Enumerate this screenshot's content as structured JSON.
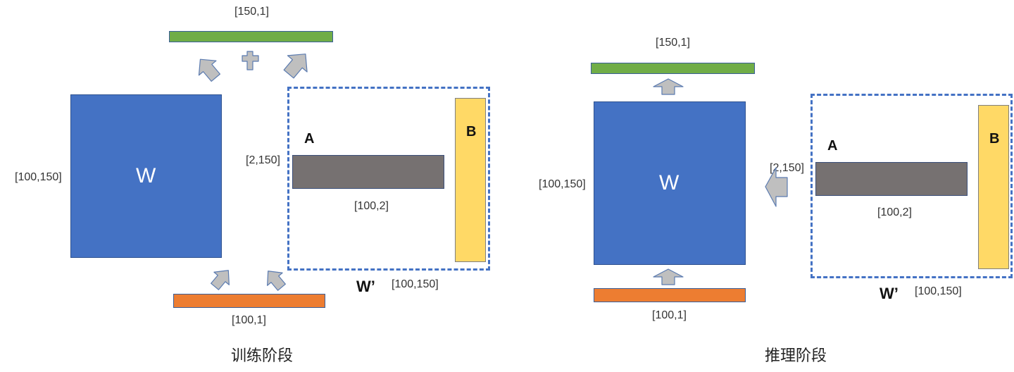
{
  "training": {
    "stage_label": "训练阶段",
    "output_dim": "[150,1]",
    "W_label": "W",
    "W_dim": "[100,150]",
    "A_label": "A",
    "A_in_dim": "[2,150]",
    "A_out_dim": "[100,2]",
    "B_label": "B",
    "Wprime_label": "W’",
    "Wprime_dim": "[100,150]",
    "input_dim": "[100,1]"
  },
  "inference": {
    "stage_label": "推理阶段",
    "output_dim": "[150,1]",
    "W_label": "W",
    "W_dim": "[100,150]",
    "A_label": "A",
    "A_in_dim": "[2,150]",
    "A_out_dim": "[100,2]",
    "B_label": "B",
    "Wprime_label": "W’",
    "Wprime_dim": "[100,150]",
    "input_dim": "[100,1]"
  },
  "colors": {
    "W": "#4472c4",
    "A": "#767171",
    "B": "#ffd966",
    "output_vector": "#70ad47",
    "input_vector": "#ed7d31",
    "arrow": "#bfbfbf",
    "dashed_border": "#4472c4"
  }
}
